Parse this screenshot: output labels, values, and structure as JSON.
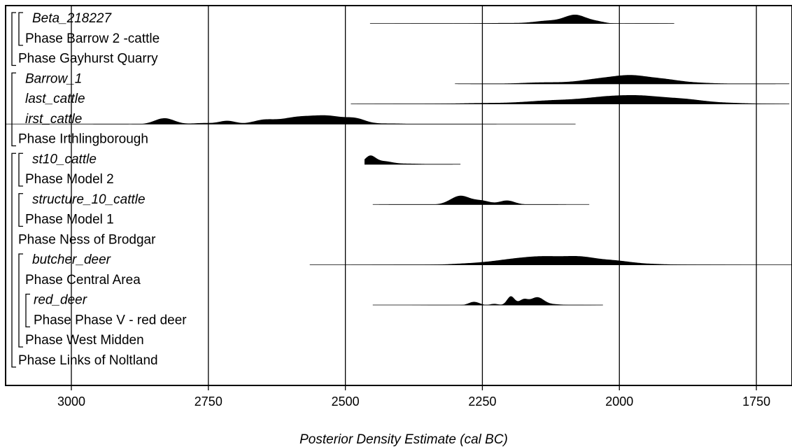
{
  "chart_data": {
    "type": "posterior-density",
    "xlabel": "Posterior Density Estimate (cal BC)",
    "xlim": [
      3120,
      1685
    ],
    "ticks": [
      3000,
      2750,
      2500,
      2250,
      2000,
      1750
    ],
    "grid": true,
    "rows": [
      {
        "label": "Beta_218227",
        "italic": true,
        "line": [
          2455,
          1900
        ],
        "peaks": [
          [
            2350,
            0.02,
            35
          ],
          [
            2210,
            0.08,
            40
          ],
          [
            2080,
            0.9,
            20
          ],
          [
            2130,
            0.3,
            25
          ],
          [
            2040,
            0.2,
            15
          ],
          [
            1950,
            0.03,
            30
          ]
        ]
      },
      {
        "label": "Phase Barrow 2 -cattle",
        "italic": false
      },
      {
        "label": "Phase Gayhurst Quarry",
        "italic": false
      },
      {
        "label": "Barrow_1",
        "italic": true,
        "line": [
          2300,
          1690
        ],
        "peaks": [
          [
            2230,
            0.03,
            35
          ],
          [
            2140,
            0.2,
            40
          ],
          [
            2030,
            0.65,
            40
          ],
          [
            1975,
            0.75,
            30
          ],
          [
            1920,
            0.5,
            30
          ],
          [
            1860,
            0.15,
            35
          ],
          [
            1770,
            0.04,
            40
          ]
        ]
      },
      {
        "label": "last_cattle",
        "italic": true,
        "line": [
          2490,
          1690
        ],
        "peaks": [
          [
            2400,
            0.03,
            45
          ],
          [
            2250,
            0.15,
            55
          ],
          [
            2120,
            0.5,
            50
          ],
          [
            2020,
            0.9,
            45
          ],
          [
            1950,
            0.85,
            40
          ],
          [
            1880,
            0.55,
            35
          ],
          [
            1810,
            0.18,
            40
          ],
          [
            1740,
            0.04,
            30
          ]
        ]
      },
      {
        "label": "irst_cattle",
        "italic": true,
        "line": [
          3120,
          2080
        ],
        "peaks": [
          [
            2930,
            0.02,
            40
          ],
          [
            2830,
            0.7,
            18
          ],
          [
            2760,
            0.15,
            20
          ],
          [
            2715,
            0.4,
            15
          ],
          [
            2650,
            0.45,
            20
          ],
          [
            2590,
            0.75,
            30
          ],
          [
            2530,
            0.9,
            30
          ],
          [
            2480,
            0.5,
            18
          ],
          [
            2420,
            0.1,
            30
          ],
          [
            2300,
            0.03,
            40
          ]
        ]
      },
      {
        "label": "Phase Irthlingborough",
        "italic": false
      },
      {
        "label": "st10_cattle",
        "italic": true,
        "line": [
          2465,
          2290
        ],
        "peaks": [
          [
            2455,
            0.95,
            10
          ],
          [
            2430,
            0.35,
            15
          ],
          [
            2390,
            0.1,
            25
          ],
          [
            2340,
            0.03,
            30
          ]
        ]
      },
      {
        "label": "Phase Model 2",
        "italic": false
      },
      {
        "label": "structure_10_cattle",
        "italic": true,
        "line": [
          2450,
          2055
        ],
        "peaks": [
          [
            2375,
            0.04,
            30
          ],
          [
            2290,
            0.85,
            18
          ],
          [
            2250,
            0.35,
            15
          ],
          [
            2205,
            0.4,
            14
          ],
          [
            2150,
            0.04,
            25
          ]
        ]
      },
      {
        "label": "Phase Model 1",
        "italic": false
      },
      {
        "label": "Phase Ness of Brodgar",
        "italic": false
      },
      {
        "label": "butcher_deer",
        "italic": true,
        "line": [
          2565,
          1685
        ],
        "peaks": [
          [
            2400,
            0.03,
            50
          ],
          [
            2270,
            0.2,
            40
          ],
          [
            2190,
            0.7,
            40
          ],
          [
            2130,
            0.85,
            35
          ],
          [
            2070,
            0.9,
            30
          ],
          [
            2010,
            0.5,
            30
          ],
          [
            1950,
            0.15,
            40
          ],
          [
            1850,
            0.03,
            40
          ]
        ]
      },
      {
        "label": "Phase Central Area",
        "italic": false
      },
      {
        "label": "red_deer",
        "italic": true,
        "line": [
          2450,
          2030
        ],
        "peaks": [
          [
            2330,
            0.03,
            25
          ],
          [
            2265,
            0.35,
            10
          ],
          [
            2228,
            0.15,
            8
          ],
          [
            2198,
            0.9,
            7
          ],
          [
            2175,
            0.55,
            8
          ],
          [
            2150,
            0.8,
            12
          ],
          [
            2120,
            0.1,
            15
          ],
          [
            2070,
            0.04,
            25
          ]
        ]
      },
      {
        "label": "Phase Phase V - red deer",
        "italic": false
      },
      {
        "label": "Phase West Midden",
        "italic": false
      },
      {
        "label": "Phase Links of Noltland",
        "italic": false
      }
    ],
    "brackets": [
      {
        "x": 17,
        "from": 0,
        "to": 2
      },
      {
        "x": 27,
        "from": 0,
        "to": 1
      },
      {
        "x": 17,
        "from": 3,
        "to": 6
      },
      {
        "x": 17,
        "from": 7,
        "to": 17
      },
      {
        "x": 27,
        "from": 7,
        "to": 8
      },
      {
        "x": 27,
        "from": 9,
        "to": 10
      },
      {
        "x": 27,
        "from": 12,
        "to": 16
      },
      {
        "x": 37,
        "from": 14,
        "to": 15
      }
    ]
  }
}
